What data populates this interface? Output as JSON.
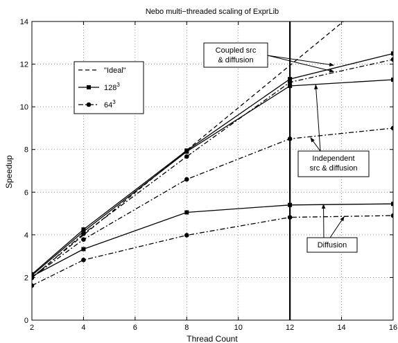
{
  "chart_data": {
    "type": "line",
    "title": "Nebo multi−threaded scaling of ExprLib",
    "xlabel": "Thread Count",
    "ylabel": "Speedup",
    "xlim": [
      2,
      16
    ],
    "ylim": [
      0,
      14
    ],
    "xticks": [
      2,
      4,
      6,
      8,
      10,
      12,
      14,
      16
    ],
    "yticks": [
      0,
      2,
      4,
      6,
      8,
      10,
      12,
      14
    ],
    "grid": true,
    "legend_position": "upper-left",
    "legend": [
      {
        "label": "\"Ideal\"",
        "base": "\"Ideal\"",
        "sup": "",
        "style": "dashed",
        "marker": "none"
      },
      {
        "label": "128^3",
        "base": "128",
        "sup": "3",
        "style": "solid",
        "marker": "square"
      },
      {
        "label": "64^3",
        "base": "64",
        "sup": "3",
        "style": "dashdot",
        "marker": "circle"
      }
    ],
    "series": [
      {
        "group": "Ideal",
        "style": "dashed",
        "marker": "none",
        "x": [
          2,
          14.07
        ],
        "y": [
          2,
          14
        ]
      },
      {
        "group": "128^3",
        "case": "Coupled src & diffusion",
        "style": "solid",
        "marker": "square",
        "x": [
          2,
          4,
          8,
          12,
          16
        ],
        "y": [
          2.15,
          4.25,
          7.95,
          11.3,
          12.5
        ]
      },
      {
        "group": "128^3",
        "case": "Independent src & diffusion",
        "style": "solid",
        "marker": "square",
        "x": [
          2,
          4,
          8,
          12,
          16
        ],
        "y": [
          2.1,
          4.15,
          7.9,
          10.98,
          11.27
        ]
      },
      {
        "group": "128^3",
        "case": "Diffusion",
        "style": "solid",
        "marker": "square",
        "x": [
          2,
          4,
          8,
          12,
          16
        ],
        "y": [
          2.05,
          3.33,
          5.05,
          5.4,
          5.45
        ]
      },
      {
        "group": "64^3",
        "case": "Coupled src & diffusion",
        "style": "dashdot",
        "marker": "circle",
        "x": [
          2,
          4,
          8,
          12,
          16
        ],
        "y": [
          1.98,
          4.05,
          7.67,
          11.15,
          12.22
        ]
      },
      {
        "group": "64^3",
        "case": "Independent src & diffusion",
        "style": "dashdot",
        "marker": "circle",
        "x": [
          2,
          4,
          8,
          12,
          16
        ],
        "y": [
          2.0,
          3.78,
          6.6,
          8.5,
          9.0
        ]
      },
      {
        "group": "64^3",
        "case": "Diffusion",
        "style": "dashdot",
        "marker": "circle",
        "x": [
          2,
          4,
          8,
          12,
          16
        ],
        "y": [
          1.62,
          2.82,
          3.98,
          4.82,
          4.9
        ]
      }
    ],
    "vertical_line_x": 12,
    "annotations": [
      {
        "lines": [
          "Coupled src",
          "& diffusion"
        ],
        "arrow_targets": [
          [
            13.7,
            11.65
          ],
          [
            13.7,
            11.95
          ]
        ]
      },
      {
        "lines": [
          "Independent",
          "src & diffusion"
        ],
        "arrow_targets": [
          [
            13.0,
            11.03
          ],
          [
            12.8,
            8.55
          ]
        ]
      },
      {
        "lines": [
          "Diffusion"
        ],
        "arrow_targets": [
          [
            13.3,
            5.43
          ],
          [
            14.1,
            4.85
          ]
        ]
      }
    ]
  }
}
